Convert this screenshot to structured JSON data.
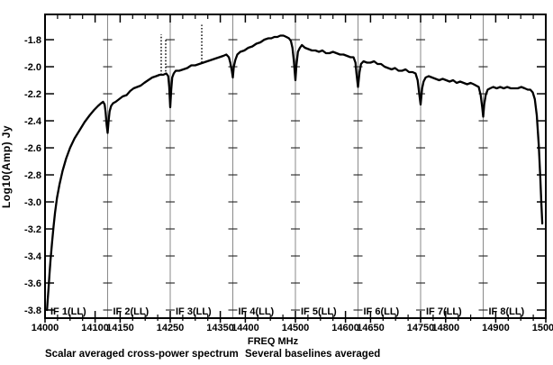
{
  "figure": {
    "background": "#ffffff",
    "frame_color": "#000000",
    "divider_color": "#8a8a8a",
    "trace_color": "#000000"
  },
  "captions": {
    "left": "Scalar averaged cross-power spectrum",
    "right": "Several baselines averaged"
  },
  "chart_data": {
    "type": "line",
    "title": "",
    "xlabel": "FREQ MHz",
    "ylabel": "Log10(Amp) Jy",
    "xlim": [
      14000,
      15000
    ],
    "ylim": [
      -3.86,
      -1.613
    ],
    "grid": false,
    "legend": "none",
    "x_major_ticks": [
      14000,
      14100,
      14150,
      14250,
      14350,
      14400,
      14500,
      14600,
      14650,
      14750,
      14800,
      14900,
      15000
    ],
    "x_minor_step_mhz": 25,
    "y_ticks": [
      -1.8,
      -2.0,
      -2.2,
      -2.4,
      -2.6,
      -2.8,
      -3.0,
      -3.2,
      -3.4,
      -3.6,
      -3.8
    ],
    "panels": [
      {
        "label": "IF 1(LL)",
        "start": 14000,
        "end": 14125
      },
      {
        "label": "IF 2(LL)",
        "start": 14125,
        "end": 14250
      },
      {
        "label": "IF 3(LL)",
        "start": 14250,
        "end": 14375
      },
      {
        "label": "IF 4(LL)",
        "start": 14375,
        "end": 14500
      },
      {
        "label": "IF 5(LL)",
        "start": 14500,
        "end": 14625
      },
      {
        "label": "IF 6(LL)",
        "start": 14625,
        "end": 14750
      },
      {
        "label": "IF 7(LL)",
        "start": 14750,
        "end": 14875
      },
      {
        "label": "IF 8(LL)",
        "start": 14875,
        "end": 15000
      }
    ],
    "series": [
      {
        "name": "scalar averaged cross-power spectrum (several baselines averaged)",
        "points": [
          [
            14004,
            -3.8
          ],
          [
            14005,
            -3.74
          ],
          [
            14007,
            -3.64
          ],
          [
            14009,
            -3.53
          ],
          [
            14011,
            -3.43
          ],
          [
            14014,
            -3.3
          ],
          [
            14017,
            -3.18
          ],
          [
            14020,
            -3.08
          ],
          [
            14024,
            -2.97
          ],
          [
            14029,
            -2.87
          ],
          [
            14035,
            -2.77
          ],
          [
            14042,
            -2.68
          ],
          [
            14050,
            -2.6
          ],
          [
            14059,
            -2.53
          ],
          [
            14069,
            -2.47
          ],
          [
            14079,
            -2.41
          ],
          [
            14089,
            -2.36
          ],
          [
            14098,
            -2.32
          ],
          [
            14106,
            -2.29
          ],
          [
            14112,
            -2.27
          ],
          [
            14116,
            -2.26
          ],
          [
            14119,
            -2.28
          ],
          [
            14121,
            -2.34
          ],
          [
            14123,
            -2.43
          ],
          [
            14125,
            -2.49
          ],
          [
            14127,
            -2.4
          ],
          [
            14129,
            -2.33
          ],
          [
            14132,
            -2.29
          ],
          [
            14136,
            -2.27
          ],
          [
            14141,
            -2.26
          ],
          [
            14148,
            -2.24
          ],
          [
            14155,
            -2.22
          ],
          [
            14163,
            -2.21
          ],
          [
            14170,
            -2.18
          ],
          [
            14177,
            -2.16
          ],
          [
            14184,
            -2.15
          ],
          [
            14191,
            -2.14
          ],
          [
            14198,
            -2.12
          ],
          [
            14206,
            -2.1
          ],
          [
            14214,
            -2.08
          ],
          [
            14222,
            -2.07
          ],
          [
            14229,
            -2.06
          ],
          [
            14236,
            -2.06
          ],
          [
            14242,
            -2.05
          ],
          [
            14246,
            -2.07
          ],
          [
            14248,
            -2.15
          ],
          [
            14250,
            -2.3
          ],
          [
            14252,
            -2.17
          ],
          [
            14254,
            -2.08
          ],
          [
            14257,
            -2.05
          ],
          [
            14261,
            -2.03
          ],
          [
            14268,
            -2.03
          ],
          [
            14276,
            -2.02
          ],
          [
            14284,
            -2.01
          ],
          [
            14292,
            -1.99
          ],
          [
            14300,
            -1.99
          ],
          [
            14308,
            -1.98
          ],
          [
            14316,
            -1.97
          ],
          [
            14324,
            -1.96
          ],
          [
            14332,
            -1.95
          ],
          [
            14340,
            -1.94
          ],
          [
            14348,
            -1.93
          ],
          [
            14356,
            -1.92
          ],
          [
            14362,
            -1.91
          ],
          [
            14367,
            -1.93
          ],
          [
            14370,
            -1.97
          ],
          [
            14373,
            -2.03
          ],
          [
            14375,
            -2.08
          ],
          [
            14377,
            -2.0
          ],
          [
            14380,
            -1.95
          ],
          [
            14384,
            -1.91
          ],
          [
            14390,
            -1.89
          ],
          [
            14398,
            -1.88
          ],
          [
            14406,
            -1.86
          ],
          [
            14414,
            -1.85
          ],
          [
            14422,
            -1.83
          ],
          [
            14430,
            -1.82
          ],
          [
            14438,
            -1.8
          ],
          [
            14446,
            -1.79
          ],
          [
            14452,
            -1.79
          ],
          [
            14458,
            -1.78
          ],
          [
            14464,
            -1.78
          ],
          [
            14470,
            -1.77
          ],
          [
            14476,
            -1.77
          ],
          [
            14482,
            -1.78
          ],
          [
            14487,
            -1.79
          ],
          [
            14491,
            -1.81
          ],
          [
            14494,
            -1.86
          ],
          [
            14497,
            -1.96
          ],
          [
            14500,
            -2.1
          ],
          [
            14502,
            -1.99
          ],
          [
            14505,
            -1.89
          ],
          [
            14509,
            -1.86
          ],
          [
            14513,
            -1.84
          ],
          [
            14519,
            -1.86
          ],
          [
            14526,
            -1.87
          ],
          [
            14533,
            -1.88
          ],
          [
            14540,
            -1.88
          ],
          [
            14547,
            -1.89
          ],
          [
            14554,
            -1.88
          ],
          [
            14561,
            -1.9
          ],
          [
            14568,
            -1.9
          ],
          [
            14575,
            -1.89
          ],
          [
            14582,
            -1.9
          ],
          [
            14589,
            -1.91
          ],
          [
            14596,
            -1.91
          ],
          [
            14603,
            -1.92
          ],
          [
            14610,
            -1.93
          ],
          [
            14616,
            -1.93
          ],
          [
            14620,
            -1.97
          ],
          [
            14622,
            -2.05
          ],
          [
            14625,
            -2.15
          ],
          [
            14628,
            -2.04
          ],
          [
            14631,
            -1.98
          ],
          [
            14636,
            -1.96
          ],
          [
            14643,
            -1.97
          ],
          [
            14650,
            -1.97
          ],
          [
            14657,
            -1.96
          ],
          [
            14664,
            -1.98
          ],
          [
            14671,
            -1.98
          ],
          [
            14678,
            -2.0
          ],
          [
            14685,
            -2.01
          ],
          [
            14692,
            -2.02
          ],
          [
            14699,
            -2.01
          ],
          [
            14706,
            -2.03
          ],
          [
            14713,
            -2.03
          ],
          [
            14720,
            -2.02
          ],
          [
            14727,
            -2.04
          ],
          [
            14734,
            -2.04
          ],
          [
            14740,
            -2.05
          ],
          [
            14744,
            -2.1
          ],
          [
            14747,
            -2.19
          ],
          [
            14750,
            -2.28
          ],
          [
            14753,
            -2.16
          ],
          [
            14756,
            -2.11
          ],
          [
            14760,
            -2.08
          ],
          [
            14766,
            -2.07
          ],
          [
            14773,
            -2.08
          ],
          [
            14780,
            -2.09
          ],
          [
            14787,
            -2.1
          ],
          [
            14794,
            -2.09
          ],
          [
            14801,
            -2.1
          ],
          [
            14808,
            -2.11
          ],
          [
            14815,
            -2.1
          ],
          [
            14822,
            -2.12
          ],
          [
            14829,
            -2.11
          ],
          [
            14836,
            -2.12
          ],
          [
            14843,
            -2.13
          ],
          [
            14850,
            -2.12
          ],
          [
            14856,
            -2.13
          ],
          [
            14861,
            -2.14
          ],
          [
            14866,
            -2.15
          ],
          [
            14870,
            -2.21
          ],
          [
            14873,
            -2.3
          ],
          [
            14875,
            -2.37
          ],
          [
            14877,
            -2.28
          ],
          [
            14880,
            -2.21
          ],
          [
            14884,
            -2.17
          ],
          [
            14889,
            -2.16
          ],
          [
            14895,
            -2.15
          ],
          [
            14902,
            -2.16
          ],
          [
            14909,
            -2.15
          ],
          [
            14916,
            -2.16
          ],
          [
            14923,
            -2.15
          ],
          [
            14930,
            -2.16
          ],
          [
            14937,
            -2.16
          ],
          [
            14944,
            -2.16
          ],
          [
            14951,
            -2.15
          ],
          [
            14958,
            -2.16
          ],
          [
            14964,
            -2.17
          ],
          [
            14969,
            -2.17
          ],
          [
            14974,
            -2.19
          ],
          [
            14978,
            -2.24
          ],
          [
            14982,
            -2.36
          ],
          [
            14986,
            -2.58
          ],
          [
            14989,
            -2.82
          ],
          [
            14991,
            -3.0
          ],
          [
            14993,
            -3.16
          ]
        ]
      }
    ],
    "spikes": [
      {
        "freq": 14232,
        "base": -2.06,
        "peak": -1.76
      },
      {
        "freq": 14241,
        "base": -2.06,
        "peak": -1.79
      },
      {
        "freq": 14313,
        "base": -1.97,
        "peak": -1.69
      }
    ]
  }
}
